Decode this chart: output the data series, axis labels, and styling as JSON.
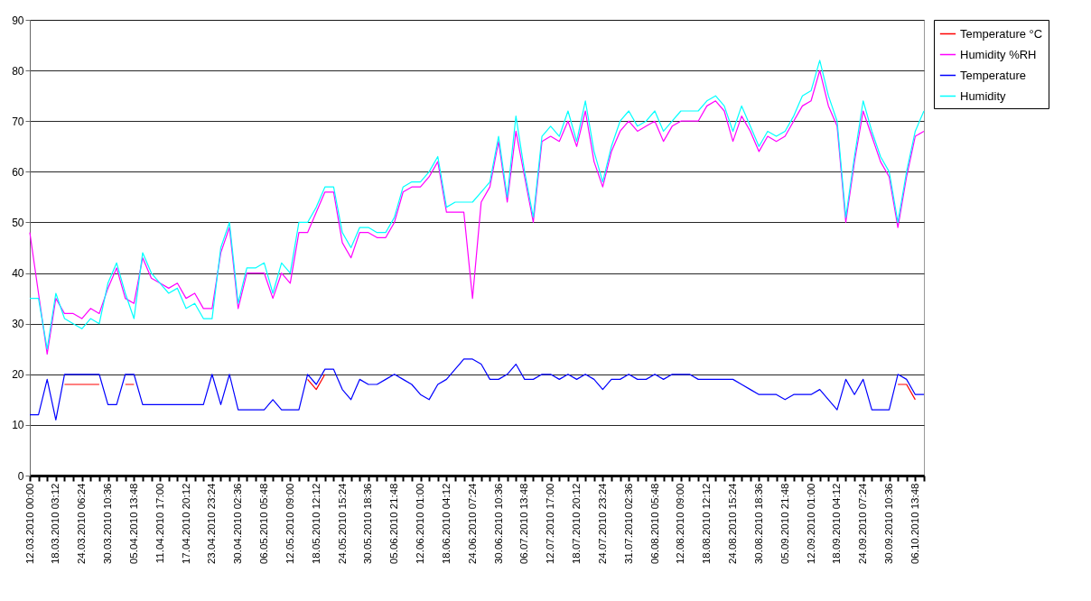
{
  "chart_data": {
    "type": "line",
    "categories": [
      "12.03.2010 00:00",
      null,
      null,
      "18.03.2010 03:12",
      null,
      null,
      "24.03.2010 06:24",
      null,
      null,
      "30.03.2010 10:36",
      null,
      null,
      "05.04.2010 13:48",
      null,
      null,
      "11.04.2010 17:00",
      null,
      null,
      "17.04.2010 20:12",
      null,
      null,
      "23.04.2010 23:24",
      null,
      null,
      "30.04.2010 02:36",
      null,
      null,
      "06.05.2010 05:48",
      null,
      null,
      "12.05.2010 09:00",
      null,
      null,
      "18.05.2010 12:12",
      null,
      null,
      "24.05.2010 15:24",
      null,
      null,
      "30.05.2010 18:36",
      null,
      null,
      "05.06.2010 21:48",
      null,
      null,
      "12.06.2010 01:00",
      null,
      null,
      "18.06.2010 04:12",
      null,
      null,
      "24.06.2010 07:24",
      null,
      null,
      "30.06.2010 10:36",
      null,
      null,
      "06.07.2010 13:48",
      null,
      null,
      "12.07.2010 17:00",
      null,
      null,
      "18.07.2010 20:12",
      null,
      null,
      "24.07.2010 23:24",
      null,
      null,
      "31.07.2010 02:36",
      null,
      null,
      "06.08.2010 05:48",
      null,
      null,
      "12.08.2010 09:00",
      null,
      null,
      "18.08.2010 12:12",
      null,
      null,
      "24.08.2010 15:24",
      null,
      null,
      "30.08.2010 18:36",
      null,
      null,
      "05.09.2010 21:48",
      null,
      null,
      "12.09.2010 01:00",
      null,
      null,
      "18.09.2010 04:12",
      null,
      null,
      "24.09.2010 07:24",
      null,
      null,
      "30.09.2010 10:36",
      null,
      null,
      "06.10.2010 13:48",
      null
    ],
    "series": [
      {
        "name": "Temperature °C",
        "color": "#ff0000",
        "values": [
          null,
          null,
          null,
          null,
          18,
          18,
          18,
          18,
          18,
          null,
          null,
          18,
          18,
          null,
          null,
          null,
          null,
          null,
          null,
          null,
          null,
          null,
          null,
          null,
          null,
          null,
          null,
          null,
          null,
          null,
          null,
          null,
          19,
          17,
          20,
          null,
          null,
          null,
          null,
          null,
          null,
          null,
          null,
          null,
          null,
          null,
          null,
          null,
          null,
          null,
          null,
          null,
          null,
          null,
          null,
          null,
          null,
          null,
          null,
          null,
          null,
          null,
          null,
          null,
          null,
          null,
          null,
          null,
          null,
          null,
          null,
          null,
          null,
          null,
          null,
          null,
          null,
          null,
          null,
          null,
          null,
          null,
          null,
          null,
          null,
          null,
          null,
          null,
          null,
          null,
          null,
          null,
          null,
          null,
          null,
          null,
          null,
          null,
          null,
          null,
          18,
          18,
          15,
          null
        ]
      },
      {
        "name": "Humidity %RH",
        "color": "#ff00ff",
        "values": [
          48,
          36,
          24,
          35,
          32,
          32,
          31,
          33,
          32,
          37,
          41,
          35,
          34,
          43,
          39,
          38,
          37,
          38,
          35,
          36,
          33,
          33,
          44,
          49,
          33,
          40,
          40,
          40,
          35,
          40,
          38,
          48,
          48,
          52,
          56,
          56,
          46,
          43,
          48,
          48,
          47,
          47,
          50,
          56,
          57,
          57,
          59,
          62,
          52,
          52,
          52,
          35,
          54,
          57,
          66,
          54,
          68,
          59,
          50,
          66,
          67,
          66,
          70,
          65,
          72,
          62,
          57,
          64,
          68,
          70,
          68,
          69,
          70,
          66,
          69,
          70,
          70,
          70,
          73,
          74,
          72,
          66,
          71,
          68,
          64,
          67,
          66,
          67,
          70,
          73,
          74,
          80,
          73,
          69,
          50,
          62,
          72,
          67,
          62,
          59,
          49,
          59,
          67,
          68
        ]
      },
      {
        "name": "Temperature",
        "color": "#0000ff",
        "values": [
          12,
          12,
          19,
          11,
          20,
          20,
          20,
          20,
          20,
          14,
          14,
          20,
          20,
          14,
          14,
          14,
          14,
          14,
          14,
          14,
          14,
          20,
          14,
          20,
          13,
          13,
          13,
          13,
          15,
          13,
          13,
          13,
          20,
          18,
          21,
          21,
          17,
          15,
          19,
          18,
          18,
          19,
          20,
          19,
          18,
          16,
          15,
          18,
          19,
          21,
          23,
          23,
          22,
          19,
          19,
          20,
          22,
          19,
          19,
          20,
          20,
          19,
          20,
          19,
          20,
          19,
          17,
          19,
          19,
          20,
          19,
          19,
          20,
          19,
          20,
          20,
          20,
          19,
          19,
          19,
          19,
          19,
          18,
          17,
          16,
          16,
          16,
          15,
          16,
          16,
          16,
          17,
          15,
          13,
          19,
          16,
          19,
          13,
          13,
          13,
          20,
          19,
          16,
          16
        ]
      },
      {
        "name": "Humidity",
        "color": "#00ffff",
        "values": [
          35,
          35,
          25,
          36,
          31,
          30,
          29,
          31,
          30,
          38,
          42,
          36,
          31,
          44,
          40,
          38,
          36,
          37,
          33,
          34,
          31,
          31,
          45,
          50,
          34,
          41,
          41,
          42,
          36,
          42,
          40,
          50,
          50,
          53,
          57,
          57,
          48,
          45,
          49,
          49,
          48,
          48,
          51,
          57,
          58,
          58,
          60,
          63,
          53,
          54,
          54,
          54,
          56,
          58,
          67,
          55,
          71,
          60,
          51,
          67,
          69,
          67,
          72,
          66,
          74,
          64,
          58,
          65,
          70,
          72,
          69,
          70,
          72,
          68,
          70,
          72,
          72,
          72,
          74,
          75,
          73,
          68,
          73,
          69,
          65,
          68,
          67,
          68,
          71,
          75,
          76,
          82,
          75,
          70,
          51,
          63,
          74,
          68,
          63,
          60,
          50,
          60,
          68,
          72
        ]
      }
    ],
    "ylim": [
      0,
      90
    ],
    "yticks": [
      0,
      10,
      20,
      30,
      40,
      50,
      60,
      70,
      80,
      90
    ],
    "grid": "y",
    "legend": "right",
    "marker": "none",
    "line_style": "solid"
  }
}
